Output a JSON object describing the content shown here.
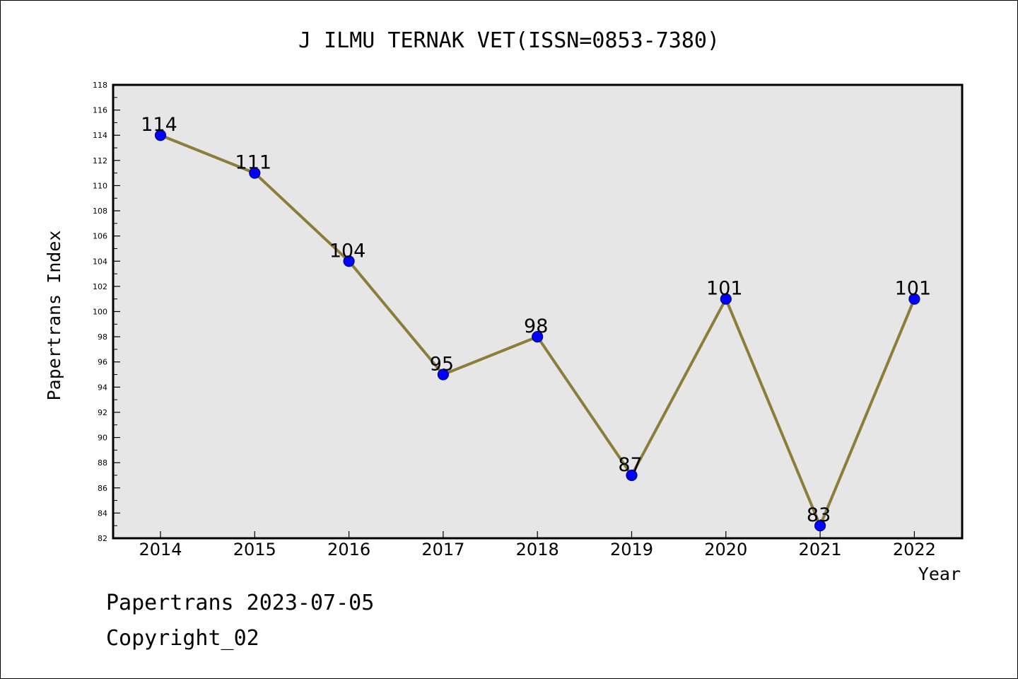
{
  "chart_data": {
    "type": "line",
    "title": "J ILMU TERNAK VET(ISSN=0853-7380)",
    "xlabel": "Year",
    "ylabel": "Papertrans Index",
    "categories": [
      "2014",
      "2015",
      "2016",
      "2017",
      "2018",
      "2019",
      "2020",
      "2021",
      "2022"
    ],
    "values": [
      114,
      111,
      104,
      95,
      98,
      87,
      101,
      83,
      101
    ],
    "data_labels": [
      "114",
      "111",
      "104",
      "95",
      "98",
      "87",
      "101",
      "83",
      "101"
    ],
    "ylim": [
      82,
      118
    ],
    "y_ticks": [
      "82",
      "84",
      "86",
      "88",
      "90",
      "92",
      "94",
      "96",
      "98",
      "100",
      "102",
      "104",
      "106",
      "108",
      "110",
      "112",
      "114",
      "116",
      "118"
    ],
    "grid": false,
    "colors": {
      "line": "#8b7d3a",
      "marker_fill": "#0000ff",
      "marker_stroke": "#00008b",
      "plot_background": "#e6e6e6"
    }
  },
  "footer": {
    "generated": "Papertrans 2023-07-05",
    "copyright": "Copyright_02"
  }
}
